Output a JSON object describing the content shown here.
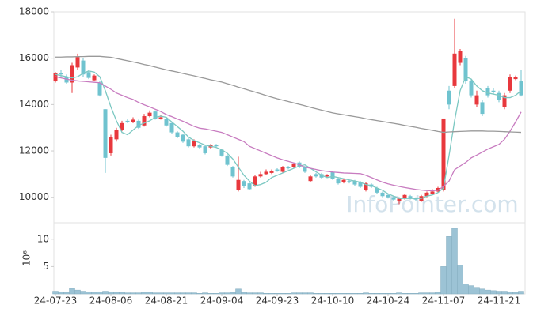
{
  "chart_data": [
    {
      "type": "candlestick",
      "watermark": "InfoPointer.com",
      "categories": [
        "24-07-23",
        null,
        null,
        null,
        null,
        null,
        null,
        null,
        null,
        null,
        "24-08-06",
        null,
        null,
        null,
        null,
        null,
        null,
        null,
        null,
        null,
        "24-08-21",
        null,
        null,
        null,
        null,
        null,
        null,
        null,
        null,
        null,
        "24-09-04",
        null,
        null,
        null,
        null,
        null,
        null,
        null,
        null,
        null,
        "24-09-23",
        null,
        null,
        null,
        null,
        null,
        null,
        null,
        null,
        null,
        "24-10-10",
        null,
        null,
        null,
        null,
        null,
        null,
        null,
        null,
        null,
        "24-10-24",
        null,
        null,
        null,
        null,
        null,
        null,
        null,
        null,
        null,
        "24-11-07",
        null,
        null,
        null,
        null,
        null,
        null,
        null,
        null,
        null,
        "24-11-21",
        null,
        null,
        null,
        null
      ],
      "open": [
        15000,
        15350,
        15200,
        14950,
        15600,
        15900,
        15400,
        15050,
        14950,
        13800,
        11900,
        12500,
        12900,
        13300,
        13250,
        13300,
        13100,
        13500,
        13700,
        13400,
        13400,
        13200,
        12800,
        12700,
        12500,
        12200,
        12250,
        12200,
        12150,
        12250,
        12050,
        11800,
        11300,
        10300,
        10700,
        10600,
        10500,
        10900,
        11000,
        11050,
        11200,
        11100,
        11300,
        11300,
        11500,
        11300,
        10700,
        11000,
        11000,
        10900,
        11100,
        10800,
        10650,
        10700,
        10700,
        10650,
        10300,
        10550,
        10400,
        10200,
        10100,
        10000,
        9850,
        9950,
        10050,
        9950,
        9850,
        10050,
        10150,
        10250,
        10300,
        14600,
        14800,
        15800,
        16000,
        15000,
        14000,
        14100,
        14700,
        14600,
        14500,
        13900,
        14600,
        15100,
        15000
      ],
      "high": [
        15400,
        15500,
        15300,
        15800,
        16200,
        16000,
        15500,
        15300,
        15000,
        13800,
        12700,
        13000,
        13300,
        13400,
        13450,
        13350,
        13600,
        13750,
        13750,
        13550,
        13450,
        13250,
        12850,
        12750,
        12550,
        12500,
        12300,
        12250,
        12300,
        12300,
        12100,
        11850,
        11350,
        11750,
        10750,
        10650,
        10950,
        11100,
        11200,
        11200,
        11250,
        11350,
        11350,
        11500,
        11550,
        11350,
        10950,
        11050,
        11050,
        11000,
        11150,
        10850,
        10800,
        10750,
        10750,
        10700,
        10650,
        10600,
        10450,
        10250,
        10150,
        10050,
        10000,
        10150,
        10100,
        10000,
        10100,
        10250,
        10350,
        10450,
        13400,
        14800,
        17700,
        16400,
        16100,
        15100,
        14600,
        14200,
        14800,
        14700,
        14600,
        14500,
        15300,
        15250,
        15500
      ],
      "low": [
        14950,
        15200,
        14900,
        14500,
        15500,
        15200,
        15100,
        15000,
        14350,
        11050,
        11800,
        12400,
        12850,
        13200,
        13200,
        12950,
        13050,
        13450,
        13350,
        13350,
        13050,
        12750,
        12550,
        12350,
        12150,
        12150,
        12100,
        11850,
        12100,
        12150,
        11750,
        11350,
        10850,
        10250,
        10400,
        10300,
        10450,
        10850,
        10950,
        11000,
        11100,
        11050,
        11200,
        11250,
        11250,
        11050,
        10650,
        10850,
        10800,
        10850,
        10750,
        10550,
        10600,
        10600,
        10500,
        10400,
        10250,
        10400,
        10150,
        10000,
        9950,
        9850,
        9700,
        9900,
        9900,
        9850,
        9800,
        10000,
        10100,
        10200,
        10250,
        13800,
        14700,
        15700,
        14900,
        14300,
        13900,
        13500,
        14300,
        14450,
        14100,
        13800,
        14500,
        15050,
        14350
      ],
      "close": [
        15350,
        15300,
        14950,
        15700,
        16050,
        15300,
        15150,
        15250,
        14400,
        11700,
        12600,
        12900,
        13200,
        13250,
        13350,
        13000,
        13500,
        13650,
        13400,
        13450,
        13100,
        12800,
        12600,
        12400,
        12200,
        12450,
        12150,
        11900,
        12250,
        12200,
        11800,
        11400,
        10900,
        10750,
        10500,
        10350,
        10900,
        11000,
        11100,
        11150,
        11150,
        11300,
        11250,
        11450,
        11300,
        11100,
        10900,
        10900,
        10850,
        10950,
        10800,
        10600,
        10750,
        10650,
        10550,
        10450,
        10600,
        10450,
        10200,
        10050,
        10000,
        9900,
        9950,
        10100,
        9950,
        9900,
        10050,
        10200,
        10250,
        10400,
        13400,
        14000,
        16200,
        16300,
        15000,
        14400,
        14400,
        13600,
        14400,
        14550,
        14200,
        14400,
        15200,
        15200,
        14400
      ],
      "up_color": "#e8383d",
      "down_color": "#6fc3cf",
      "series": [
        {
          "color": "#7cc8c2",
          "values": [
            15300,
            15250,
            15200,
            15150,
            15200,
            15350,
            15450,
            15400,
            15200,
            14600,
            13900,
            13300,
            12800,
            12700,
            12900,
            13100,
            13200,
            13300,
            13450,
            13500,
            13450,
            13250,
            13050,
            12850,
            12600,
            12450,
            12350,
            12250,
            12200,
            12150,
            12050,
            11900,
            11650,
            11300,
            10950,
            10700,
            10500,
            10550,
            10650,
            10850,
            10950,
            11050,
            11150,
            11250,
            11350,
            11400,
            11250,
            11100,
            10950,
            10850,
            10900,
            10850,
            10800,
            10750,
            10700,
            10650,
            10550,
            10500,
            10400,
            10300,
            10150,
            10050,
            9950,
            9950,
            9950,
            9950,
            9950,
            10050,
            10100,
            10200,
            10400,
            11800,
            13300,
            14600,
            15200,
            15100,
            14800,
            14600,
            14500,
            14450,
            14400,
            14300,
            14300,
            14400,
            14600
          ]
        },
        {
          "color": "#c87cc0",
          "values": [
            15200,
            15150,
            15100,
            15050,
            15020,
            15000,
            14980,
            14960,
            14940,
            14800,
            14660,
            14500,
            14400,
            14300,
            14220,
            14090,
            13990,
            13900,
            13800,
            13700,
            13570,
            13480,
            13380,
            13280,
            13170,
            13060,
            12980,
            12950,
            12900,
            12850,
            12800,
            12700,
            12600,
            12500,
            12400,
            12200,
            12100,
            12000,
            11900,
            11800,
            11700,
            11620,
            11550,
            11480,
            11400,
            11300,
            11250,
            11200,
            11150,
            11120,
            11090,
            11070,
            11050,
            11040,
            11030,
            11020,
            10950,
            10850,
            10750,
            10650,
            10580,
            10520,
            10470,
            10420,
            10380,
            10340,
            10310,
            10290,
            10280,
            10300,
            10470,
            10700,
            11190,
            11350,
            11500,
            11700,
            11820,
            11950,
            12080,
            12180,
            12280,
            12500,
            12850,
            13250,
            13680
          ]
        },
        {
          "color": "#9a9a9a",
          "values": [
            16050,
            16050,
            16060,
            16060,
            16070,
            16070,
            16080,
            16080,
            16080,
            16060,
            16040,
            15990,
            15940,
            15890,
            15840,
            15790,
            15730,
            15680,
            15620,
            15560,
            15500,
            15450,
            15400,
            15340,
            15290,
            15240,
            15180,
            15130,
            15070,
            15020,
            14970,
            14900,
            14830,
            14750,
            14680,
            14610,
            14540,
            14470,
            14390,
            14320,
            14250,
            14190,
            14130,
            14070,
            14010,
            13950,
            13880,
            13820,
            13760,
            13700,
            13640,
            13600,
            13560,
            13520,
            13480,
            13440,
            13390,
            13350,
            13310,
            13270,
            13230,
            13190,
            13150,
            13100,
            13060,
            13020,
            12970,
            12930,
            12890,
            12840,
            12800,
            12820,
            12830,
            12840,
            12850,
            12860,
            12860,
            12860,
            12850,
            12850,
            12840,
            12830,
            12820,
            12810,
            12800
          ]
        }
      ],
      "ylim": [
        8900,
        18000
      ],
      "yticks": [
        10000,
        12000,
        14000,
        16000,
        18000
      ]
    },
    {
      "type": "bar",
      "ylabel": "10⁶",
      "color": "#9cc3d5",
      "values": [
        0.5,
        0.4,
        0.3,
        1.0,
        0.7,
        0.5,
        0.4,
        0.3,
        0.4,
        0.5,
        0.4,
        0.3,
        0.3,
        0.2,
        0.2,
        0.2,
        0.3,
        0.3,
        0.2,
        0.2,
        0.2,
        0.2,
        0.2,
        0.2,
        0.2,
        0.2,
        0.1,
        0.2,
        0.1,
        0.1,
        0.2,
        0.2,
        0.3,
        0.9,
        0.3,
        0.2,
        0.2,
        0.2,
        0.1,
        0.1,
        0.1,
        0.1,
        0.1,
        0.2,
        0.2,
        0.2,
        0.2,
        0.1,
        0.1,
        0.1,
        0.1,
        0.1,
        0.1,
        0.1,
        0.1,
        0.1,
        0.2,
        0.1,
        0.1,
        0.1,
        0.1,
        0.1,
        0.2,
        0.1,
        0.1,
        0.1,
        0.2,
        0.2,
        0.2,
        0.3,
        5.0,
        10.5,
        12.0,
        5.3,
        1.8,
        1.5,
        1.2,
        0.9,
        0.7,
        0.6,
        0.5,
        0.5,
        0.4,
        0.3,
        0.5
      ],
      "ylim": [
        0,
        13
      ],
      "yticks": [
        5,
        10
      ]
    }
  ]
}
